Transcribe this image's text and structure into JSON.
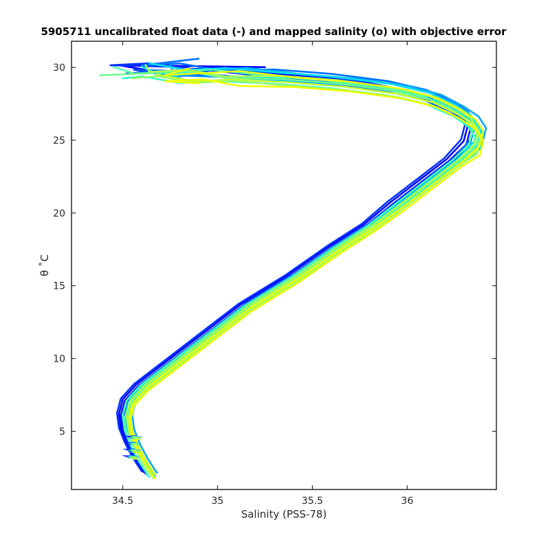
{
  "chart_data": {
    "type": "line",
    "title": "5905711 uncalibrated float data (-) and mapped salinity (o) with objective error",
    "xlabel": "Salinity (PSS-78)",
    "ylabel": "θ ˚C",
    "xlim": [
      34.23,
      36.47
    ],
    "ylim": [
      1.0,
      31.8
    ],
    "xticks": [
      34.5,
      35,
      35.5,
      36
    ],
    "xtick_labels": [
      "34.5",
      "35",
      "35.5",
      "36"
    ],
    "yticks": [
      5,
      10,
      15,
      20,
      25,
      30
    ],
    "ytick_labels": [
      "5",
      "10",
      "15",
      "20",
      "25",
      "30"
    ],
    "grid": false,
    "legend": "none",
    "colormap": [
      "#0000ff",
      "#0064ff",
      "#00c8ff",
      "#32ffc8",
      "#96ff64",
      "#e6ff00"
    ],
    "reference_profile": {
      "s": [
        34.64,
        34.59,
        34.55,
        34.52,
        34.51,
        34.53,
        34.6,
        34.75,
        34.95,
        35.15,
        35.4,
        35.62,
        35.8,
        35.95,
        36.1,
        36.25,
        36.34,
        36.36,
        36.32,
        36.24,
        36.1,
        35.9,
        35.6,
        35.3,
        35.0,
        34.8,
        34.6,
        34.4
      ],
      "t": [
        2.0,
        3.0,
        4.0,
        5.0,
        6.0,
        7.0,
        8.0,
        9.5,
        11.5,
        13.5,
        15.5,
        17.5,
        19.0,
        20.5,
        22.0,
        23.5,
        24.5,
        25.5,
        26.3,
        27.0,
        27.8,
        28.4,
        28.9,
        29.2,
        29.4,
        29.5,
        29.6,
        29.7
      ]
    },
    "series": [
      {
        "ds": -0.03,
        "dt": 0.2,
        "top_s": 35.25,
        "color": "#0000ff"
      },
      {
        "ds": -0.02,
        "dt": 0.1,
        "top_s": 35.05,
        "color": "#0014ff"
      },
      {
        "ds": -0.04,
        "dt": 0.25,
        "top_s": 34.85,
        "color": "#0032ff"
      },
      {
        "ds": -0.01,
        "dt": 0.0,
        "top_s": 34.95,
        "color": "#0050ff"
      },
      {
        "ds": 0.0,
        "dt": 0.3,
        "top_s": 34.9,
        "color": "#0070ff"
      },
      {
        "ds": 0.02,
        "dt": -0.1,
        "top_s": 35.0,
        "color": "#008cff"
      },
      {
        "ds": 0.04,
        "dt": 0.15,
        "top_s": 34.75,
        "color": "#00a8ff"
      },
      {
        "ds": 0.03,
        "dt": -0.05,
        "top_s": 34.8,
        "color": "#00c4ff"
      },
      {
        "ds": 0.01,
        "dt": 0.2,
        "top_s": 34.7,
        "color": "#00dcf0"
      },
      {
        "ds": 0.02,
        "dt": 0.05,
        "top_s": 34.6,
        "color": "#14f0dc"
      },
      {
        "ds": 0.0,
        "dt": -0.15,
        "top_s": 34.5,
        "color": "#32ffc8"
      },
      {
        "ds": -0.01,
        "dt": 0.1,
        "top_s": 34.45,
        "color": "#50ffaa"
      },
      {
        "ds": 0.01,
        "dt": 0.0,
        "top_s": 34.38,
        "color": "#6eff8c"
      },
      {
        "ds": 0.02,
        "dt": -0.2,
        "top_s": 34.55,
        "color": "#8cff6e"
      },
      {
        "ds": 0.01,
        "dt": 0.1,
        "top_s": 34.62,
        "color": "#aaff50"
      },
      {
        "ds": 0.02,
        "dt": -0.1,
        "top_s": 34.68,
        "color": "#c8ff32"
      },
      {
        "ds": 0.03,
        "dt": 0.05,
        "top_s": 34.85,
        "color": "#e6ff14"
      },
      {
        "ds": 0.03,
        "dt": -0.25,
        "top_s": 34.9,
        "color": "#f0ff00"
      }
    ]
  }
}
